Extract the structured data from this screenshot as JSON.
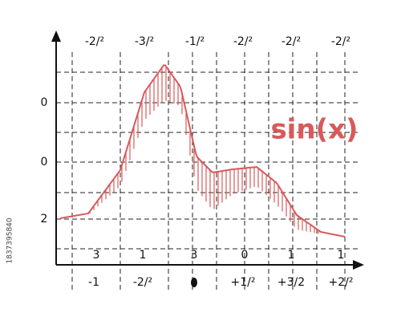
{
  "title": "sin(x)",
  "top_labels": [
    "-2/²",
    "-3/²",
    "-1/²",
    "-2/²",
    "-2/²",
    "-2/²"
  ],
  "left_labels": [
    "0",
    "0",
    "2"
  ],
  "inner_labels": [
    "3",
    "1",
    "3",
    "0",
    "1",
    "1"
  ],
  "bottom_labels": [
    "-1",
    "-2/²",
    "+1/²",
    "+3/2",
    "+2/²"
  ],
  "stock_id": "1837395840"
}
